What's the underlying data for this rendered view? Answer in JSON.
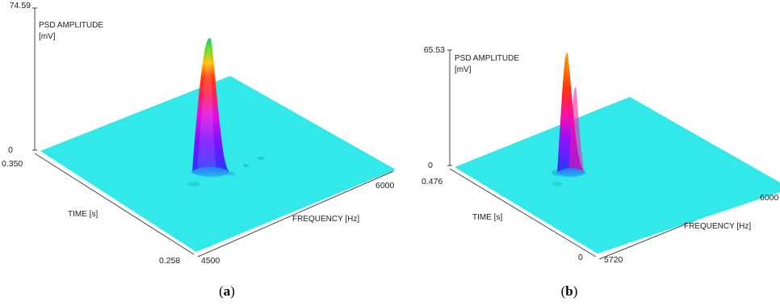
{
  "figure": {
    "panels": [
      {
        "caption_open": "(",
        "caption_letter": "a",
        "caption_close": ")",
        "chart_ref": 0
      },
      {
        "caption_open": "(",
        "caption_letter": "b",
        "caption_close": ")",
        "chart_ref": 1
      }
    ]
  },
  "chart_data": [
    {
      "type": "surface3d",
      "zlabel_line1": "PSD AMPLITUDE",
      "zlabel_line2": "[mV]",
      "xlabel": "FREQUENCY [Hz]",
      "ylabel": "TIME [s]",
      "zticks": [
        "74.59",
        "0"
      ],
      "xticks": [
        "4500",
        "6000"
      ],
      "yticks": [
        "0.350",
        "0.258"
      ],
      "zlim": [
        0,
        74.59
      ],
      "xlim": [
        4500,
        6000
      ],
      "ylim": [
        0.258,
        0.35
      ],
      "surface_color": "#33e8e8",
      "peak": {
        "frequency": 5150,
        "time": 0.3,
        "amplitude": 74.59,
        "colors": [
          "#2020ff",
          "#c000ff",
          "#ff2a6a",
          "#ff3000",
          "#ffd000",
          "#30e030"
        ]
      }
    },
    {
      "type": "surface3d",
      "zlabel_line1": "PSD AMPLITUDE",
      "zlabel_line2": "[mV]",
      "xlabel": "FREQUENCY [Hz]",
      "ylabel": "TIME [s]",
      "zticks": [
        "65.53",
        "0"
      ],
      "xticks": [
        "5720",
        "6000"
      ],
      "yticks": [
        "0.476",
        "0"
      ],
      "zlim": [
        0,
        65.53
      ],
      "xlim": [
        5720,
        6000
      ],
      "ylim": [
        0,
        0.476
      ],
      "surface_color": "#33e8e8",
      "peak": {
        "frequency": 5800,
        "time": 0.35,
        "amplitude": 65.53,
        "colors": [
          "#2020ff",
          "#c000ff",
          "#ff2a6a",
          "#ff4000",
          "#ff8a00"
        ]
      }
    }
  ]
}
